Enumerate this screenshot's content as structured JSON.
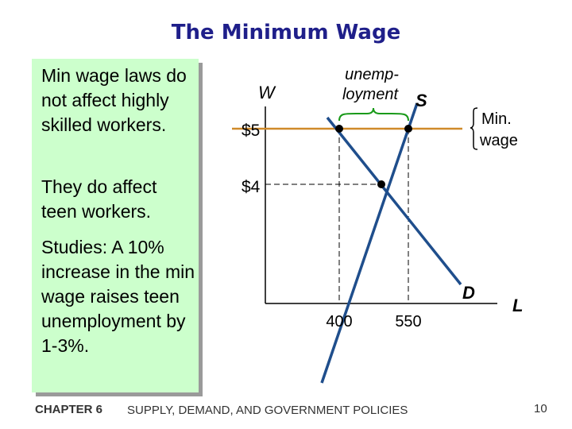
{
  "slide": {
    "title": "The Minimum Wage",
    "paragraphs": [
      "Min wage laws do not affect highly skilled workers.",
      "They do affect teen workers.",
      "Studies: A 10% increase in the min wage raises teen unemployment by 1-3%."
    ],
    "footer": {
      "chapter": "CHAPTER 6",
      "title": "SUPPLY, DEMAND, AND GOVERNMENT POLICIES",
      "page": "10"
    }
  },
  "diagram": {
    "y_axis_label": "W",
    "x_axis_label": "L",
    "supply_label": "S",
    "demand_label": "D",
    "unemployment_label_line1": "unemp-",
    "unemployment_label_line2": "loyment",
    "min_wage_label_line1": "Min.",
    "min_wage_label_line2": "wage",
    "price_labels": [
      "$5",
      "$4"
    ],
    "quantity_labels": [
      "400",
      "550"
    ],
    "colors": {
      "curves": "#1f4e8c",
      "min_wage_line": "#d08a2a",
      "title": "#1f1f8a",
      "side_panel": "#ccffcc"
    }
  }
}
